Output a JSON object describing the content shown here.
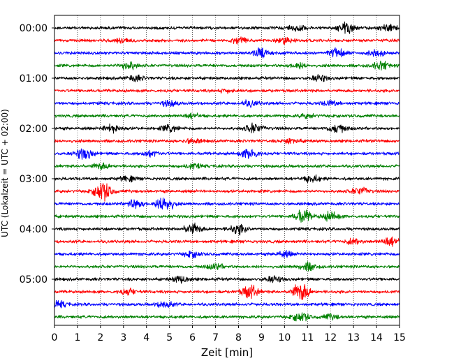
{
  "chart_data": {
    "type": "line",
    "title": "",
    "xlabel": "Zeit  [min]",
    "ylabel": "UTC (Lokalzeit = UTC + 02:00)",
    "xlim": [
      0,
      15
    ],
    "x_ticks": [
      "0",
      "1",
      "2",
      "3",
      "4",
      "5",
      "6",
      "7",
      "8",
      "9",
      "10",
      "11",
      "12",
      "13",
      "14",
      "15"
    ],
    "y_tick_labels": [
      "00:00",
      "01:00",
      "02:00",
      "03:00",
      "04:00",
      "05:00"
    ],
    "grid": "vertical dotted",
    "trace_colors": [
      "#000000",
      "#ff0000",
      "#0000ff",
      "#008000"
    ],
    "trace_count": 24,
    "trace_minutes_per_line": 15,
    "traces": [
      {
        "start": "00:00",
        "color": "#000000",
        "events": [
          {
            "t": 10.5,
            "amp": 0.6
          },
          {
            "t": 12.7,
            "amp": 1.0
          },
          {
            "t": 14.5,
            "amp": 0.6
          }
        ]
      },
      {
        "start": "00:15",
        "color": "#ff0000",
        "events": [
          {
            "t": 3.0,
            "amp": 0.4
          },
          {
            "t": 8.0,
            "amp": 0.5
          },
          {
            "t": 10.0,
            "amp": 0.5
          }
        ]
      },
      {
        "start": "00:30",
        "color": "#0000ff",
        "events": [
          {
            "t": 9.0,
            "amp": 0.9
          },
          {
            "t": 12.3,
            "amp": 0.8
          },
          {
            "t": 14.0,
            "amp": 0.5
          }
        ]
      },
      {
        "start": "00:45",
        "color": "#008000",
        "events": [
          {
            "t": 3.2,
            "amp": 0.8
          },
          {
            "t": 10.6,
            "amp": 0.5
          },
          {
            "t": 14.2,
            "amp": 0.7
          }
        ]
      },
      {
        "start": "01:00",
        "color": "#000000",
        "events": [
          {
            "t": 3.5,
            "amp": 0.5
          },
          {
            "t": 11.5,
            "amp": 0.5
          }
        ]
      },
      {
        "start": "01:15",
        "color": "#ff0000",
        "events": [
          {
            "t": 7.5,
            "amp": 0.3
          }
        ]
      },
      {
        "start": "01:30",
        "color": "#0000ff",
        "events": [
          {
            "t": 5.0,
            "amp": 0.5
          },
          {
            "t": 8.5,
            "amp": 0.5
          },
          {
            "t": 12.0,
            "amp": 0.4
          }
        ]
      },
      {
        "start": "01:45",
        "color": "#008000",
        "events": [
          {
            "t": 6.0,
            "amp": 0.4
          },
          {
            "t": 11.0,
            "amp": 0.3
          }
        ]
      },
      {
        "start": "02:00",
        "color": "#000000",
        "events": [
          {
            "t": 2.5,
            "amp": 0.8
          },
          {
            "t": 5.0,
            "amp": 0.6
          },
          {
            "t": 8.7,
            "amp": 0.9
          },
          {
            "t": 12.3,
            "amp": 0.8
          }
        ]
      },
      {
        "start": "02:15",
        "color": "#ff0000",
        "events": [
          {
            "t": 6.0,
            "amp": 0.4
          },
          {
            "t": 10.3,
            "amp": 0.4
          }
        ]
      },
      {
        "start": "02:30",
        "color": "#0000ff",
        "events": [
          {
            "t": 1.3,
            "amp": 1.0
          },
          {
            "t": 4.2,
            "amp": 0.5
          },
          {
            "t": 8.5,
            "amp": 1.0
          }
        ]
      },
      {
        "start": "02:45",
        "color": "#008000",
        "events": [
          {
            "t": 2.0,
            "amp": 0.5
          },
          {
            "t": 6.0,
            "amp": 0.4
          }
        ]
      },
      {
        "start": "03:00",
        "color": "#000000",
        "events": [
          {
            "t": 3.2,
            "amp": 0.4
          },
          {
            "t": 11.2,
            "amp": 0.6
          }
        ]
      },
      {
        "start": "03:15",
        "color": "#ff0000",
        "events": [
          {
            "t": 2.1,
            "amp": 1.8
          },
          {
            "t": 13.3,
            "amp": 0.7
          }
        ]
      },
      {
        "start": "03:30",
        "color": "#0000ff",
        "events": [
          {
            "t": 3.5,
            "amp": 0.8
          },
          {
            "t": 4.8,
            "amp": 1.6
          }
        ]
      },
      {
        "start": "03:45",
        "color": "#008000",
        "events": [
          {
            "t": 10.8,
            "amp": 1.2
          },
          {
            "t": 12.0,
            "amp": 0.8
          }
        ]
      },
      {
        "start": "04:00",
        "color": "#000000",
        "events": [
          {
            "t": 6.0,
            "amp": 1.0
          },
          {
            "t": 8.0,
            "amp": 0.9
          }
        ]
      },
      {
        "start": "04:15",
        "color": "#ff0000",
        "events": [
          {
            "t": 13.0,
            "amp": 0.5
          },
          {
            "t": 14.6,
            "amp": 0.8
          }
        ]
      },
      {
        "start": "04:30",
        "color": "#0000ff",
        "events": [
          {
            "t": 6.0,
            "amp": 0.5
          },
          {
            "t": 10.0,
            "amp": 0.5
          }
        ]
      },
      {
        "start": "04:45",
        "color": "#008000",
        "events": [
          {
            "t": 7.0,
            "amp": 0.5
          },
          {
            "t": 11.0,
            "amp": 0.7
          }
        ]
      },
      {
        "start": "05:00",
        "color": "#000000",
        "events": [
          {
            "t": 5.5,
            "amp": 0.6
          },
          {
            "t": 9.5,
            "amp": 0.5
          }
        ]
      },
      {
        "start": "05:15",
        "color": "#ff0000",
        "events": [
          {
            "t": 3.2,
            "amp": 0.5
          },
          {
            "t": 8.5,
            "amp": 1.2
          },
          {
            "t": 10.7,
            "amp": 1.7
          }
        ]
      },
      {
        "start": "05:30",
        "color": "#0000ff",
        "events": [
          {
            "t": 4.8,
            "amp": 0.6
          },
          {
            "t": 0.2,
            "amp": 0.5
          }
        ]
      },
      {
        "start": "05:45",
        "color": "#008000",
        "events": [
          {
            "t": 10.7,
            "amp": 0.8
          },
          {
            "t": 12.0,
            "amp": 0.4
          }
        ]
      }
    ]
  }
}
